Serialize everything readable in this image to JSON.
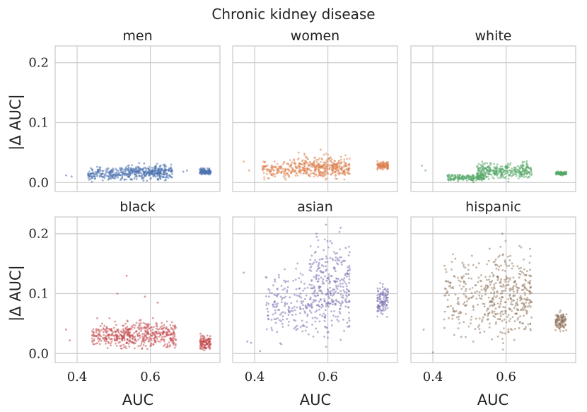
{
  "chart_data": {
    "type": "scatter",
    "title": "Chronic kidney disease",
    "xlabel": "AUC",
    "ylabel": "|Δ AUC|",
    "xlim": [
      0.34,
      0.79
    ],
    "ylim": [
      -0.015,
      0.228
    ],
    "xticks": [
      0.4,
      0.6
    ],
    "xtick_labels": [
      "0.4",
      "0.6"
    ],
    "yticks": [
      0.0,
      0.1,
      0.2
    ],
    "ytick_labels": [
      "0.0",
      "0.1",
      "0.2"
    ],
    "grid": true,
    "panels": [
      {
        "title": "men",
        "color": "#4c72b0",
        "clusters": [
          {
            "xmin": 0.43,
            "xmax": 0.53,
            "ymin": 0.0,
            "ymax": 0.03,
            "n": 170
          },
          {
            "xmin": 0.53,
            "xmax": 0.66,
            "ymin": 0.0,
            "ymax": 0.034,
            "n": 330
          },
          {
            "xmin": 0.735,
            "xmax": 0.765,
            "ymin": 0.011,
            "ymax": 0.026,
            "n": 110
          }
        ],
        "points": [
          [
            0.37,
            0.012
          ],
          [
            0.385,
            0.01
          ],
          [
            0.7,
            0.02
          ],
          [
            0.69,
            0.018
          ]
        ]
      },
      {
        "title": "women",
        "color": "#dd8452",
        "clusters": [
          {
            "xmin": 0.42,
            "xmax": 0.53,
            "ymin": 0.0,
            "ymax": 0.045,
            "n": 170
          },
          {
            "xmin": 0.53,
            "xmax": 0.66,
            "ymin": 0.0,
            "ymax": 0.052,
            "n": 330
          },
          {
            "xmin": 0.735,
            "xmax": 0.765,
            "ymin": 0.02,
            "ymax": 0.037,
            "n": 110
          }
        ],
        "points": [
          [
            0.37,
            0.035
          ],
          [
            0.385,
            0.02
          ],
          [
            0.52,
            0.05
          ],
          [
            0.58,
            0.055
          ]
        ]
      },
      {
        "title": "white",
        "color": "#55a868",
        "clusters": [
          {
            "xmin": 0.44,
            "xmax": 0.54,
            "ymin": 0.0,
            "ymax": 0.016,
            "n": 170
          },
          {
            "xmin": 0.52,
            "xmax": 0.67,
            "ymin": 0.0,
            "ymax": 0.038,
            "n": 330
          },
          {
            "xmin": 0.735,
            "xmax": 0.765,
            "ymin": 0.011,
            "ymax": 0.02,
            "n": 110
          }
        ],
        "points": [
          [
            0.37,
            0.028
          ],
          [
            0.38,
            0.02
          ]
        ]
      },
      {
        "title": "black",
        "color": "#c44e52",
        "clusters": [
          {
            "xmin": 0.44,
            "xmax": 0.54,
            "ymin": 0.0,
            "ymax": 0.06,
            "n": 170
          },
          {
            "xmin": 0.52,
            "xmax": 0.67,
            "ymin": 0.0,
            "ymax": 0.065,
            "n": 330
          },
          {
            "xmin": 0.735,
            "xmax": 0.765,
            "ymin": 0.002,
            "ymax": 0.035,
            "n": 110
          }
        ],
        "points": [
          [
            0.37,
            0.04
          ],
          [
            0.38,
            0.022
          ],
          [
            0.535,
            0.13
          ],
          [
            0.51,
            0.1
          ],
          [
            0.585,
            0.095
          ],
          [
            0.62,
            0.085
          ]
        ]
      },
      {
        "title": "asian",
        "color": "#8172b3",
        "clusters": [
          {
            "xmin": 0.43,
            "xmax": 0.55,
            "ymin": 0.0,
            "ymax": 0.17,
            "n": 170
          },
          {
            "xmin": 0.55,
            "xmax": 0.66,
            "ymin": 0.0,
            "ymax": 0.215,
            "n": 330
          },
          {
            "xmin": 0.735,
            "xmax": 0.765,
            "ymin": 0.05,
            "ymax": 0.125,
            "n": 110
          }
        ],
        "points": [
          [
            0.37,
            0.135
          ],
          [
            0.38,
            0.02
          ],
          [
            0.39,
            0.018
          ],
          [
            0.415,
            0.004
          ],
          [
            0.595,
            0.215
          ],
          [
            0.635,
            0.21
          ]
        ]
      },
      {
        "title": "hispanic",
        "color": "#937860",
        "clusters": [
          {
            "xmin": 0.43,
            "xmax": 0.55,
            "ymin": 0.0,
            "ymax": 0.19,
            "n": 170
          },
          {
            "xmin": 0.55,
            "xmax": 0.67,
            "ymin": 0.0,
            "ymax": 0.2,
            "n": 330
          },
          {
            "xmin": 0.735,
            "xmax": 0.765,
            "ymin": 0.03,
            "ymax": 0.078,
            "n": 110
          }
        ],
        "points": [
          [
            0.375,
            0.04
          ],
          [
            0.4,
            0.002
          ],
          [
            0.59,
            0.2
          ],
          [
            0.555,
            0.175
          ]
        ]
      }
    ]
  }
}
